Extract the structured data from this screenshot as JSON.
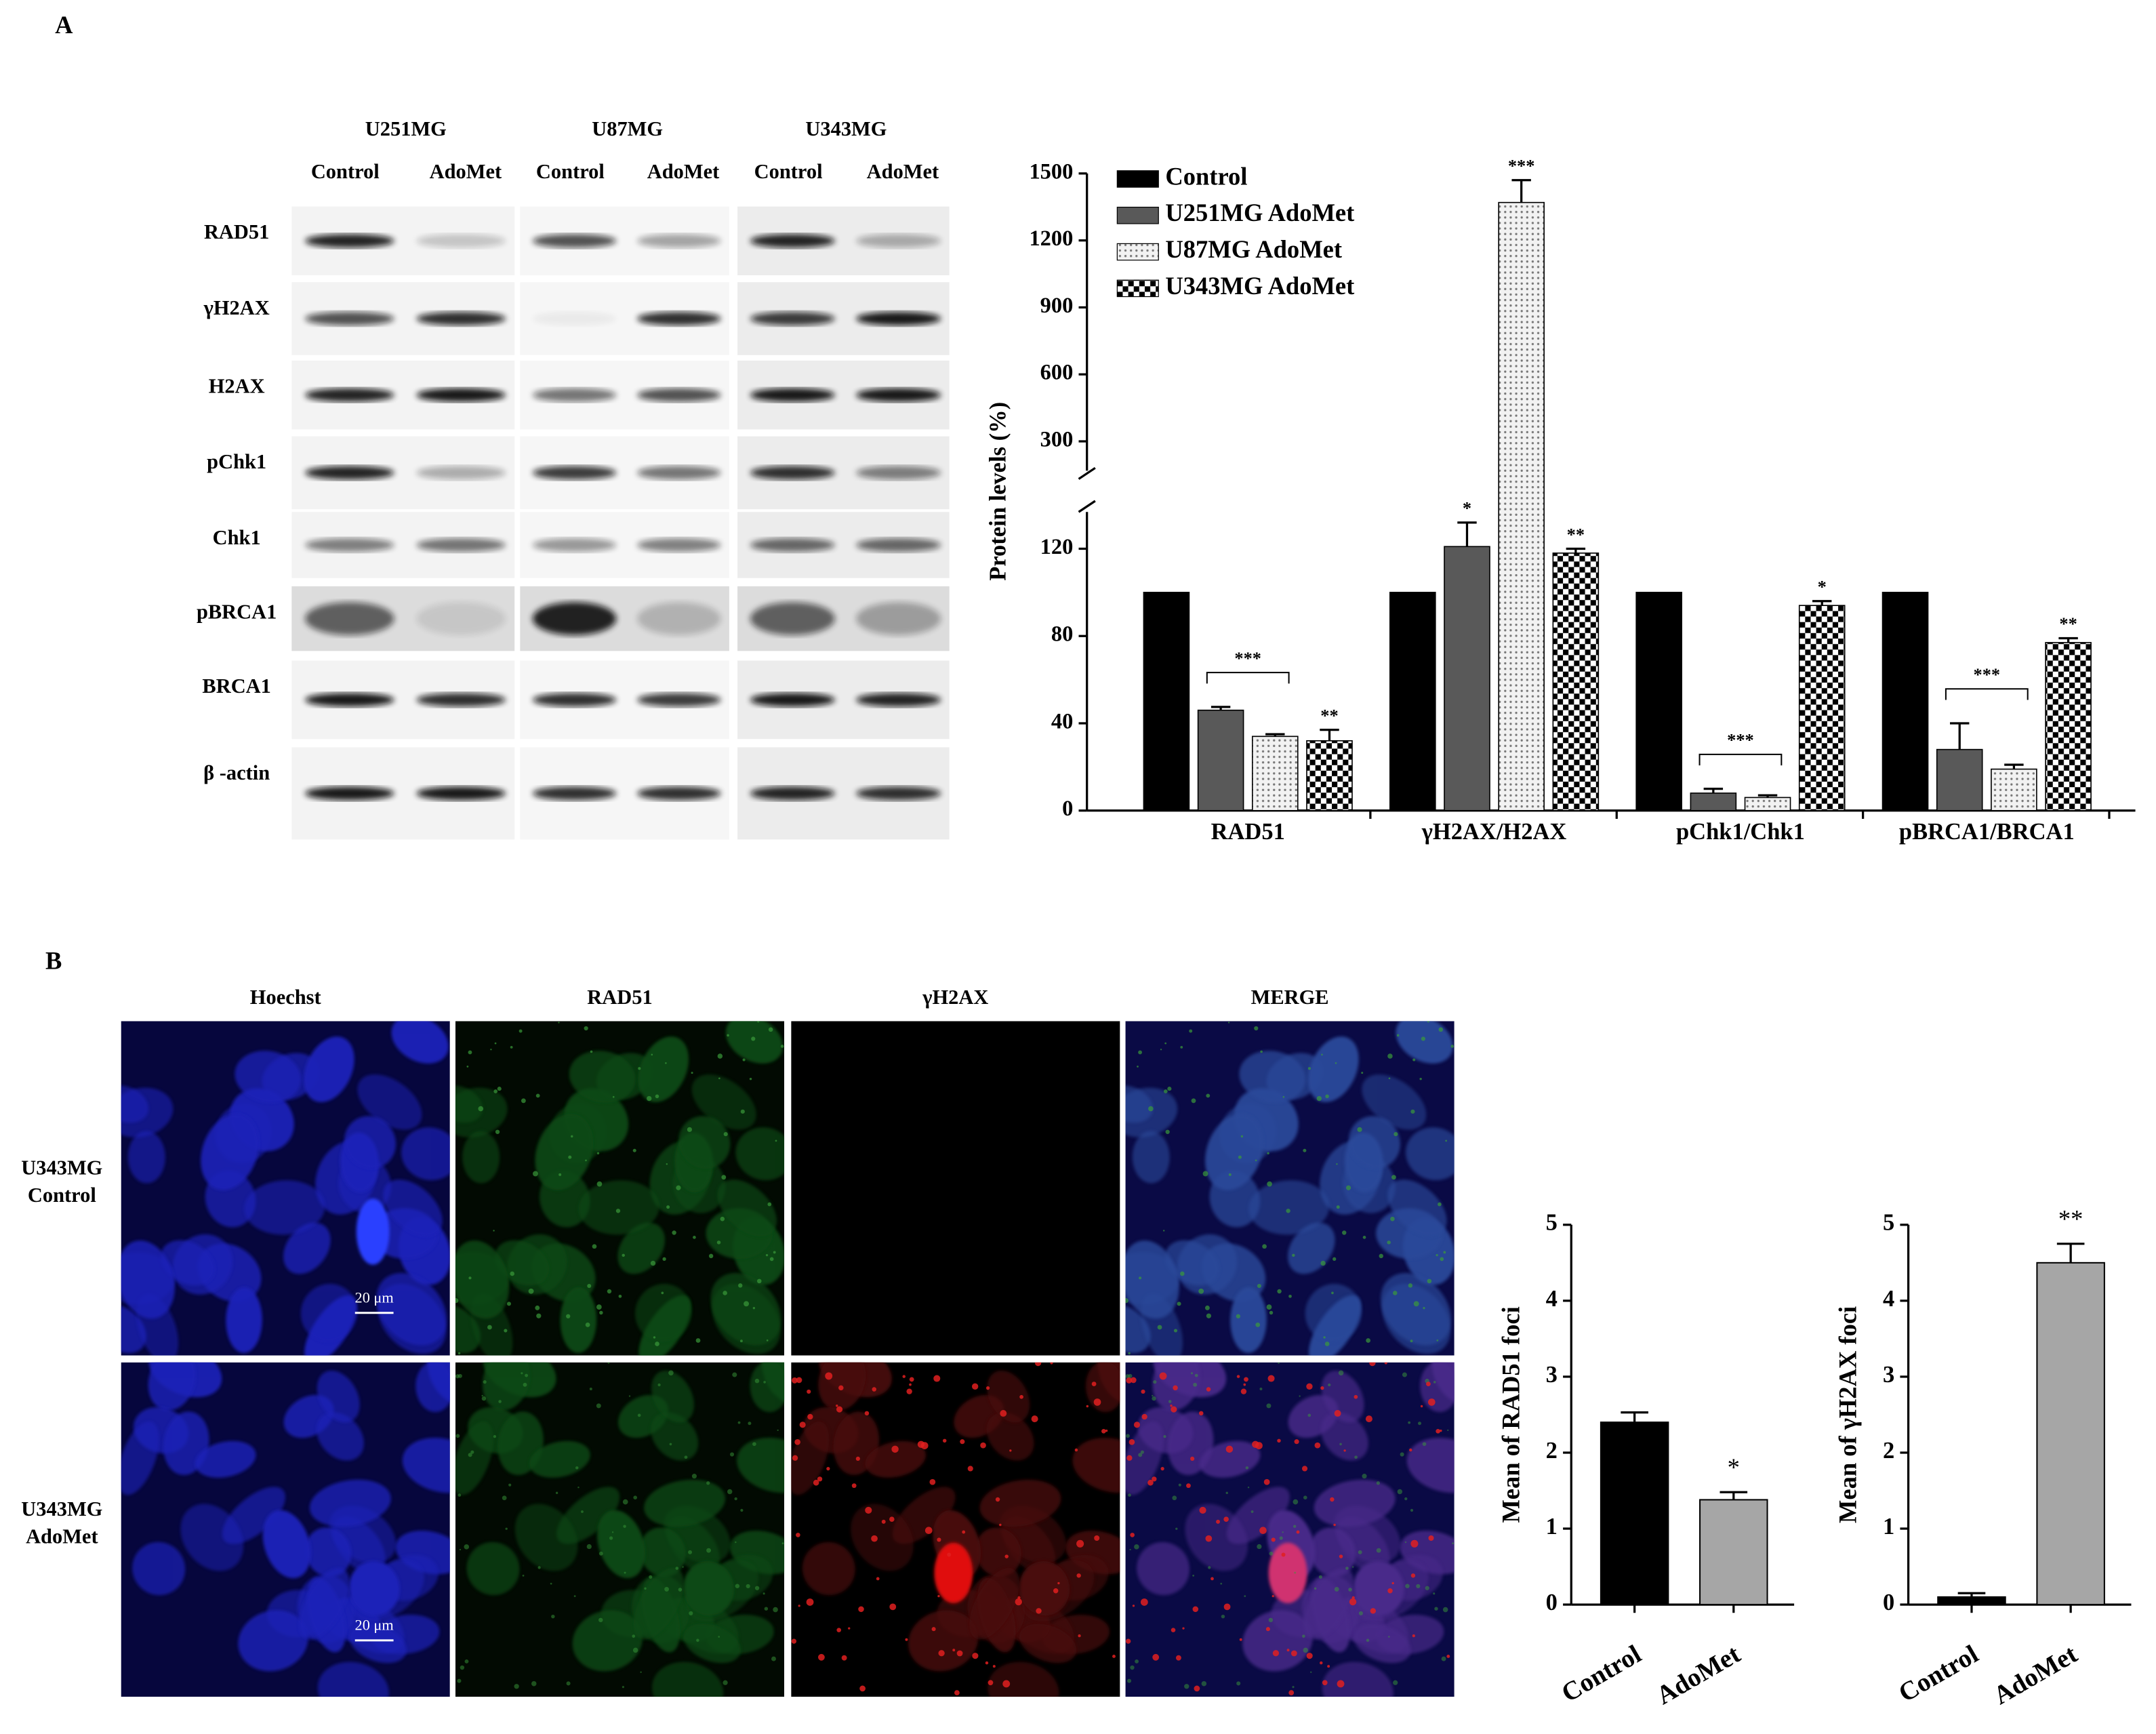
{
  "panels": {
    "a": "A",
    "b": "B"
  },
  "blots": {
    "cell_lines": [
      "U251MG",
      "U87MG",
      "U343MG"
    ],
    "conditions": [
      "Control",
      "AdoMet"
    ],
    "proteins": [
      "RAD51",
      "γH2AX",
      "H2AX",
      "pChk1",
      "Chk1",
      "pBRCA1",
      "BRCA1",
      "β -actin"
    ]
  },
  "microscopy": {
    "channels": [
      "Hoechst",
      "RAD51",
      "γH2AX",
      "MERGE"
    ],
    "rows": [
      [
        "U343MG",
        "Control"
      ],
      [
        "U343MG",
        "AdoMet"
      ]
    ],
    "scale_bar": "20 μm"
  },
  "chart_data": [
    {
      "type": "bar",
      "ylabel": "Protein levels (%)",
      "categories": [
        "RAD51",
        "γH2AX/H2AX",
        "pChk1/Chk1",
        "pBRCA1/BRCA1"
      ],
      "series": [
        {
          "name": "Control",
          "color": "#000000",
          "pattern": "solid",
          "values": [
            100,
            100,
            100,
            100
          ]
        },
        {
          "name": "U251MG AdoMet",
          "color": "#595959",
          "pattern": "solid",
          "values": [
            46,
            121,
            8,
            28
          ],
          "errors": [
            1.5,
            11,
            2,
            12
          ],
          "labels": [
            null,
            "*",
            null,
            null
          ]
        },
        {
          "name": "U87MG AdoMet",
          "color": "#dddddd",
          "pattern": "dots",
          "values": [
            34,
            1370,
            6,
            19
          ],
          "errors": [
            1,
            100,
            1,
            2
          ],
          "labels": [
            null,
            "***",
            null,
            null
          ]
        },
        {
          "name": "U343MG AdoMet",
          "color": "#000000",
          "pattern": "checker",
          "values": [
            32,
            118,
            94,
            77
          ],
          "errors": [
            5,
            2,
            2,
            2
          ],
          "labels": [
            "**",
            "**",
            "*",
            "**"
          ]
        }
      ],
      "brackets": [
        "***",
        null,
        "***",
        "***"
      ],
      "ylim": [
        0,
        1500
      ],
      "ybreak": [
        140,
        150
      ],
      "yticks": [
        0,
        40,
        80,
        120,
        300,
        600,
        900,
        1200,
        1500
      ],
      "legend": "top-left"
    },
    {
      "type": "bar",
      "ylabel": "Mean of RAD51 foci",
      "categories": [
        "Control",
        "AdoMet"
      ],
      "values": [
        2.4,
        1.38
      ],
      "errors": [
        0.13,
        0.1
      ],
      "colors": [
        "#000000",
        "#a6a6a6"
      ],
      "labels": [
        null,
        "*"
      ],
      "ylim": [
        0,
        5
      ],
      "yticks": [
        0,
        1,
        2,
        3,
        4,
        5
      ]
    },
    {
      "type": "bar",
      "ylabel": "Mean of γH2AX foci",
      "categories": [
        "Control",
        "AdoMet"
      ],
      "values": [
        0.1,
        4.5
      ],
      "errors": [
        0.05,
        0.25
      ],
      "colors": [
        "#000000",
        "#a6a6a6"
      ],
      "labels": [
        null,
        "**"
      ],
      "ylim": [
        0,
        5
      ],
      "yticks": [
        0,
        1,
        2,
        3,
        4,
        5
      ]
    }
  ]
}
